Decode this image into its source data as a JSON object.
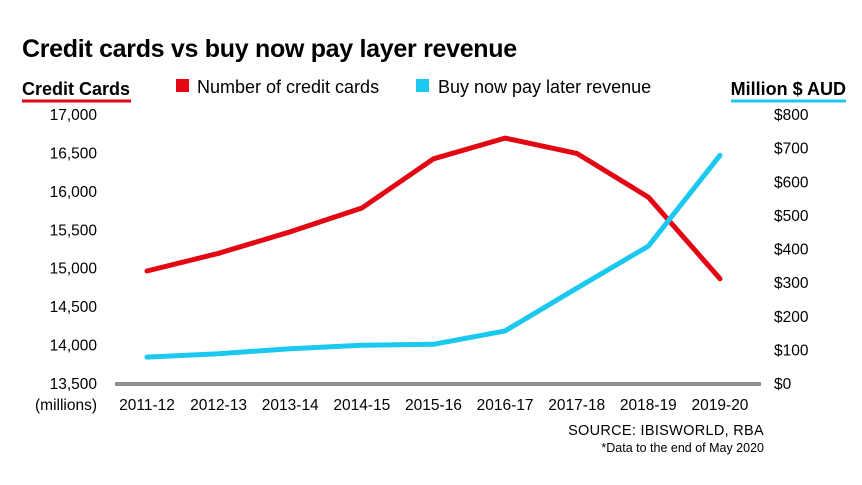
{
  "chart_data": {
    "type": "line",
    "title": "Credit cards vs buy now pay layer revenue",
    "categories": [
      "2011-12",
      "2012-13",
      "2013-14",
      "2014-15",
      "2015-16",
      "2016-17",
      "2017-18",
      "2018-19",
      "2019-20"
    ],
    "left_axis": {
      "label": "Credit Cards",
      "unit_label": "(millions)",
      "ylim": [
        13500,
        17000
      ],
      "ticks": [
        13500,
        14000,
        14500,
        15000,
        15500,
        16000,
        16500,
        17000
      ],
      "tick_labels": [
        "13,500",
        "14,000",
        "14,500",
        "15,000",
        "15,500",
        "16,000",
        "16,500",
        "17,000"
      ]
    },
    "right_axis": {
      "label": "Million $ AUD",
      "ylim": [
        0,
        800
      ],
      "ticks": [
        0,
        100,
        200,
        300,
        400,
        500,
        600,
        700,
        800
      ],
      "tick_labels": [
        "$0",
        "$100",
        "$200",
        "$300",
        "$400",
        "$500",
        "$600",
        "$700",
        "$800"
      ]
    },
    "series": [
      {
        "name": "Number of credit cards",
        "axis": "left",
        "color": "#e30613",
        "values": [
          14970,
          15200,
          15480,
          15790,
          16430,
          16700,
          16500,
          15930,
          14870
        ]
      },
      {
        "name": "Buy now pay later revenue",
        "axis": "right",
        "color": "#1ac8f0",
        "values": [
          80,
          90,
          105,
          115,
          118,
          158,
          285,
          410,
          680
        ]
      }
    ],
    "source": "SOURCE: IBISWORLD, RBA",
    "footnote": "*Data to the end of May 2020",
    "grid": false,
    "legend_position": "top"
  },
  "colors": {
    "baseline": "#8f8f8f",
    "text": "#111111"
  }
}
